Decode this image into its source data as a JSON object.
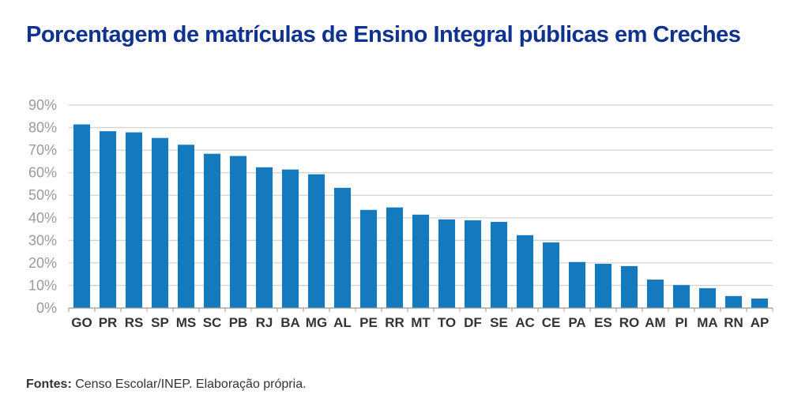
{
  "chart_data": {
    "type": "bar",
    "title": "Porcentagem de matrículas de Ensino Integral públicas em Creches",
    "xlabel": "",
    "ylabel": "",
    "ylim": [
      0,
      90
    ],
    "yticks": [
      "0%",
      "10%",
      "20%",
      "30%",
      "40%",
      "50%",
      "60%",
      "70%",
      "80%",
      "90%"
    ],
    "grid": true,
    "bar_color": "#1479bd",
    "categories": [
      "GO",
      "PR",
      "RS",
      "SP",
      "MS",
      "SC",
      "PB",
      "RJ",
      "BA",
      "MG",
      "AL",
      "PE",
      "RR",
      "MT",
      "TO",
      "DF",
      "SE",
      "AC",
      "CE",
      "PA",
      "ES",
      "RO",
      "AM",
      "PI",
      "MA",
      "RN",
      "AP"
    ],
    "values": [
      81.4,
      78.4,
      77.9,
      75.4,
      72.4,
      68.4,
      67.4,
      62.4,
      61.4,
      59.3,
      53.3,
      43.5,
      44.6,
      41.4,
      39.3,
      38.9,
      38.2,
      32.3,
      29.1,
      20.4,
      19.6,
      18.6,
      12.6,
      10.2,
      8.8,
      5.3,
      4.2
    ]
  },
  "source": {
    "label": "Fontes:",
    "text": " Censo Escolar/INEP. Elaboração própria."
  }
}
